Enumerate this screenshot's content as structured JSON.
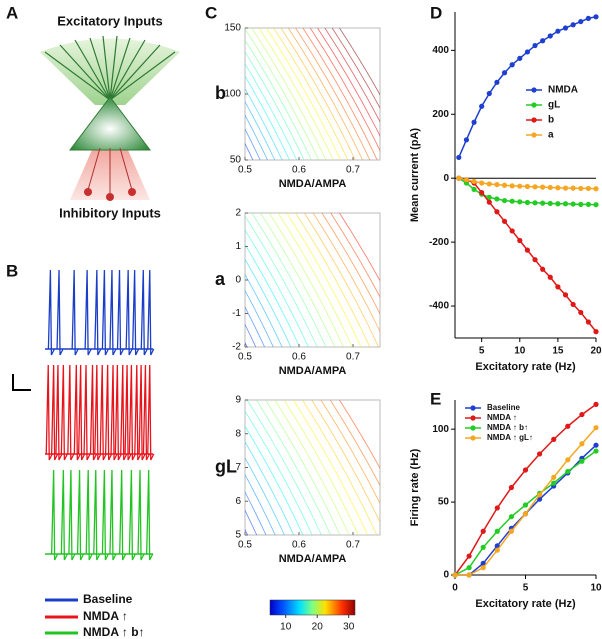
{
  "panel_labels": [
    "A",
    "B",
    "C",
    "D",
    "E"
  ],
  "diagram": {
    "top_label": "Excitatory Inputs",
    "bottom_label": "Inhibitory Inputs"
  },
  "chart_data": [
    {
      "type": "traces",
      "xlim": [
        0,
        100
      ],
      "series": [
        {
          "name": "Baseline",
          "color": "#1a3ec8",
          "spikes": [
            5,
            13,
            27,
            39,
            48,
            55,
            62,
            69,
            77,
            83,
            91,
            97
          ]
        },
        {
          "name": "NMDA ↑",
          "color": "#e8141c",
          "spikes": [
            3,
            8,
            12,
            17,
            23,
            29,
            33,
            38,
            44,
            48,
            53,
            58,
            63,
            67,
            72,
            76,
            80,
            85,
            89,
            93,
            97
          ]
        },
        {
          "name": "NMDA ↑  b↑",
          "color": "#22c422",
          "spikes": [
            8,
            17,
            24,
            32,
            40,
            47,
            55,
            62,
            71,
            80,
            88,
            96
          ]
        }
      ]
    },
    {
      "type": "contour",
      "ylabel": "b",
      "xlabel": "NMDA/AMPA",
      "xlim": [
        0.5,
        0.75
      ],
      "xticks": [
        0.5,
        0.6,
        0.7
      ],
      "ylim": [
        50,
        150
      ],
      "yticks": [
        50,
        100,
        150
      ],
      "levels": [
        8,
        9,
        10,
        11,
        12,
        13,
        14,
        15,
        16,
        17,
        18,
        19,
        20,
        21,
        22,
        23,
        24,
        25,
        26,
        27,
        28,
        29,
        30,
        31,
        32
      ]
    },
    {
      "type": "contour",
      "ylabel": "a",
      "xlabel": "NMDA/AMPA",
      "xlim": [
        0.5,
        0.75
      ],
      "xticks": [
        0.5,
        0.6,
        0.7
      ],
      "ylim": [
        -2,
        2
      ],
      "yticks": [
        -2,
        -1,
        0,
        1,
        2
      ],
      "levels": [
        8,
        9,
        10,
        11,
        12,
        13,
        14,
        15,
        16,
        17,
        18,
        19,
        20,
        21,
        22,
        23,
        24,
        25,
        26,
        27,
        28
      ]
    },
    {
      "type": "contour",
      "ylabel": "gL",
      "xlabel": "NMDA/AMPA",
      "xlim": [
        0.5,
        0.75
      ],
      "xticks": [
        0.5,
        0.6,
        0.7
      ],
      "ylim": [
        5,
        9
      ],
      "yticks": [
        5,
        6,
        7,
        8,
        9
      ],
      "levels": [
        8,
        9,
        10,
        11,
        12,
        13,
        14,
        15,
        16,
        17,
        18,
        19,
        20,
        21,
        22,
        23,
        24,
        25,
        26,
        27
      ]
    },
    {
      "type": "colorbar",
      "lim": [
        5,
        32
      ],
      "ticks": [
        10,
        20,
        30
      ]
    },
    {
      "type": "line",
      "xlabel": "Excitatory rate (Hz)",
      "ylabel": "Mean current (pA)",
      "xlim": [
        1.5,
        20
      ],
      "xticks": [
        5,
        10,
        15,
        20
      ],
      "ylim": [
        -500,
        520
      ],
      "yticks": [
        -400,
        -200,
        0,
        200,
        400
      ],
      "zero_line": true,
      "legend": "right",
      "x": [
        2,
        3,
        4,
        5,
        6,
        7,
        8,
        9,
        10,
        11,
        12,
        13,
        14,
        15,
        16,
        17,
        18,
        19,
        20
      ],
      "series": [
        {
          "name": "NMDA",
          "color": "#1f3fd0",
          "values": [
            65,
            120,
            175,
            225,
            265,
            300,
            330,
            355,
            375,
            395,
            415,
            430,
            445,
            460,
            470,
            480,
            490,
            500,
            505
          ]
        },
        {
          "name": "gL",
          "color": "#22cc22",
          "values": [
            0,
            -15,
            -35,
            -50,
            -60,
            -65,
            -70,
            -72,
            -74,
            -76,
            -77,
            -78,
            -79,
            -80,
            -80,
            -81,
            -82,
            -82,
            -83
          ]
        },
        {
          "name": "b",
          "color": "#e01818",
          "values": [
            0,
            -5,
            -15,
            -45,
            -75,
            -105,
            -135,
            -165,
            -195,
            -225,
            -255,
            -285,
            -310,
            -340,
            -365,
            -395,
            -420,
            -450,
            -480
          ]
        },
        {
          "name": "a",
          "color": "#f5a623",
          "values": [
            0,
            -5,
            -10,
            -15,
            -18,
            -20,
            -22,
            -24,
            -25,
            -26,
            -27,
            -28,
            -29,
            -30,
            -31,
            -31,
            -32,
            -32,
            -33
          ]
        }
      ]
    },
    {
      "type": "line",
      "xlabel": "Excitatory rate (Hz)",
      "ylabel": "Firing rate (Hz)",
      "xlim": [
        0,
        10
      ],
      "xticks": [
        0,
        5,
        10
      ],
      "ylim": [
        0,
        120
      ],
      "yticks": [
        0,
        50,
        100
      ],
      "legend": "upper left",
      "x": [
        0,
        1,
        2,
        3,
        4,
        5,
        6,
        7,
        8,
        9,
        10
      ],
      "series": [
        {
          "name": "Baseline",
          "color": "#1f3fd0",
          "values": [
            0,
            0,
            8,
            20,
            32,
            42,
            52,
            61,
            70,
            80,
            89
          ]
        },
        {
          "name": "NMDA ↑",
          "color": "#e01818",
          "values": [
            0,
            13,
            30,
            46,
            60,
            72,
            83,
            93,
            102,
            110,
            117
          ]
        },
        {
          "name": "NMDA ↑  b↑",
          "color": "#22cc22",
          "values": [
            0,
            5,
            19,
            30,
            40,
            48,
            56,
            63,
            71,
            78,
            85
          ]
        },
        {
          "name": "NMDA ↑  gL↑",
          "color": "#f5a623",
          "values": [
            0,
            0,
            5,
            17,
            30,
            42,
            55,
            67,
            79,
            90,
            101
          ]
        }
      ]
    }
  ]
}
